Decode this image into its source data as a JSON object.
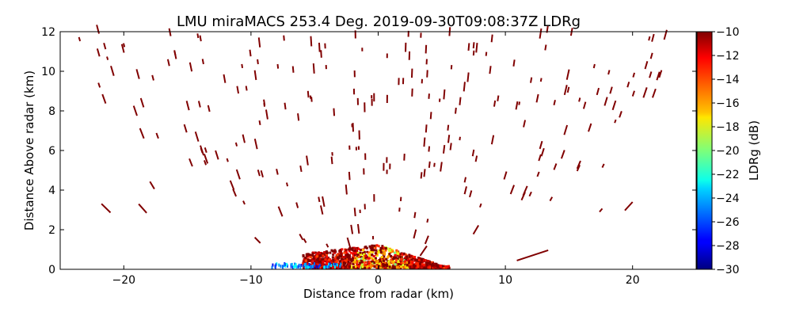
{
  "chart_data": {
    "type": "heatmap",
    "title": "LMU miraMACS 253.4 Deg. 2019-09-30T09:08:37Z  LDRg",
    "xlabel": "Distance from radar (km)",
    "ylabel": "Distance Above radar  (km)",
    "xlim": [
      -25,
      25
    ],
    "ylim": [
      0,
      12
    ],
    "xticks": [
      -20,
      -10,
      0,
      10,
      20
    ],
    "xtick_labels": [
      "−20",
      "−10",
      "0",
      "10",
      "20"
    ],
    "yticks": [
      0,
      2,
      4,
      6,
      8,
      10,
      12
    ],
    "ytick_labels": [
      "0",
      "2",
      "4",
      "6",
      "8",
      "10",
      "12"
    ],
    "grid": false,
    "colorbar": {
      "label": "LDRg (dB)",
      "colormap": "jet",
      "range": [
        -30,
        -10
      ],
      "ticks": [
        -10,
        -12,
        -14,
        -16,
        -18,
        -20,
        -22,
        -24,
        -26,
        -28,
        -30
      ],
      "tick_labels": [
        "−10",
        "−12",
        "−14",
        "−16",
        "−18",
        "−20",
        "−22",
        "−24",
        "−26",
        "−28",
        "−30"
      ]
    },
    "echo_regions": [
      {
        "name": "sparse-clutter-streaks",
        "x_range": [
          -24,
          23
        ],
        "y_range": [
          0.2,
          12
        ],
        "ldr_db": -10,
        "count": 330
      },
      {
        "name": "near-ground-clutter",
        "x_range": [
          -6,
          5.5
        ],
        "y_range": [
          0,
          1.3
        ],
        "ldr_db_range": [
          -22,
          -10
        ],
        "count": 1400
      },
      {
        "name": "low-ldr-ground-strip",
        "x_range": [
          -8.5,
          -3
        ],
        "y_range": [
          0,
          0.2
        ],
        "ldr_db_range": [
          -28,
          -22
        ],
        "count": 70
      }
    ]
  }
}
